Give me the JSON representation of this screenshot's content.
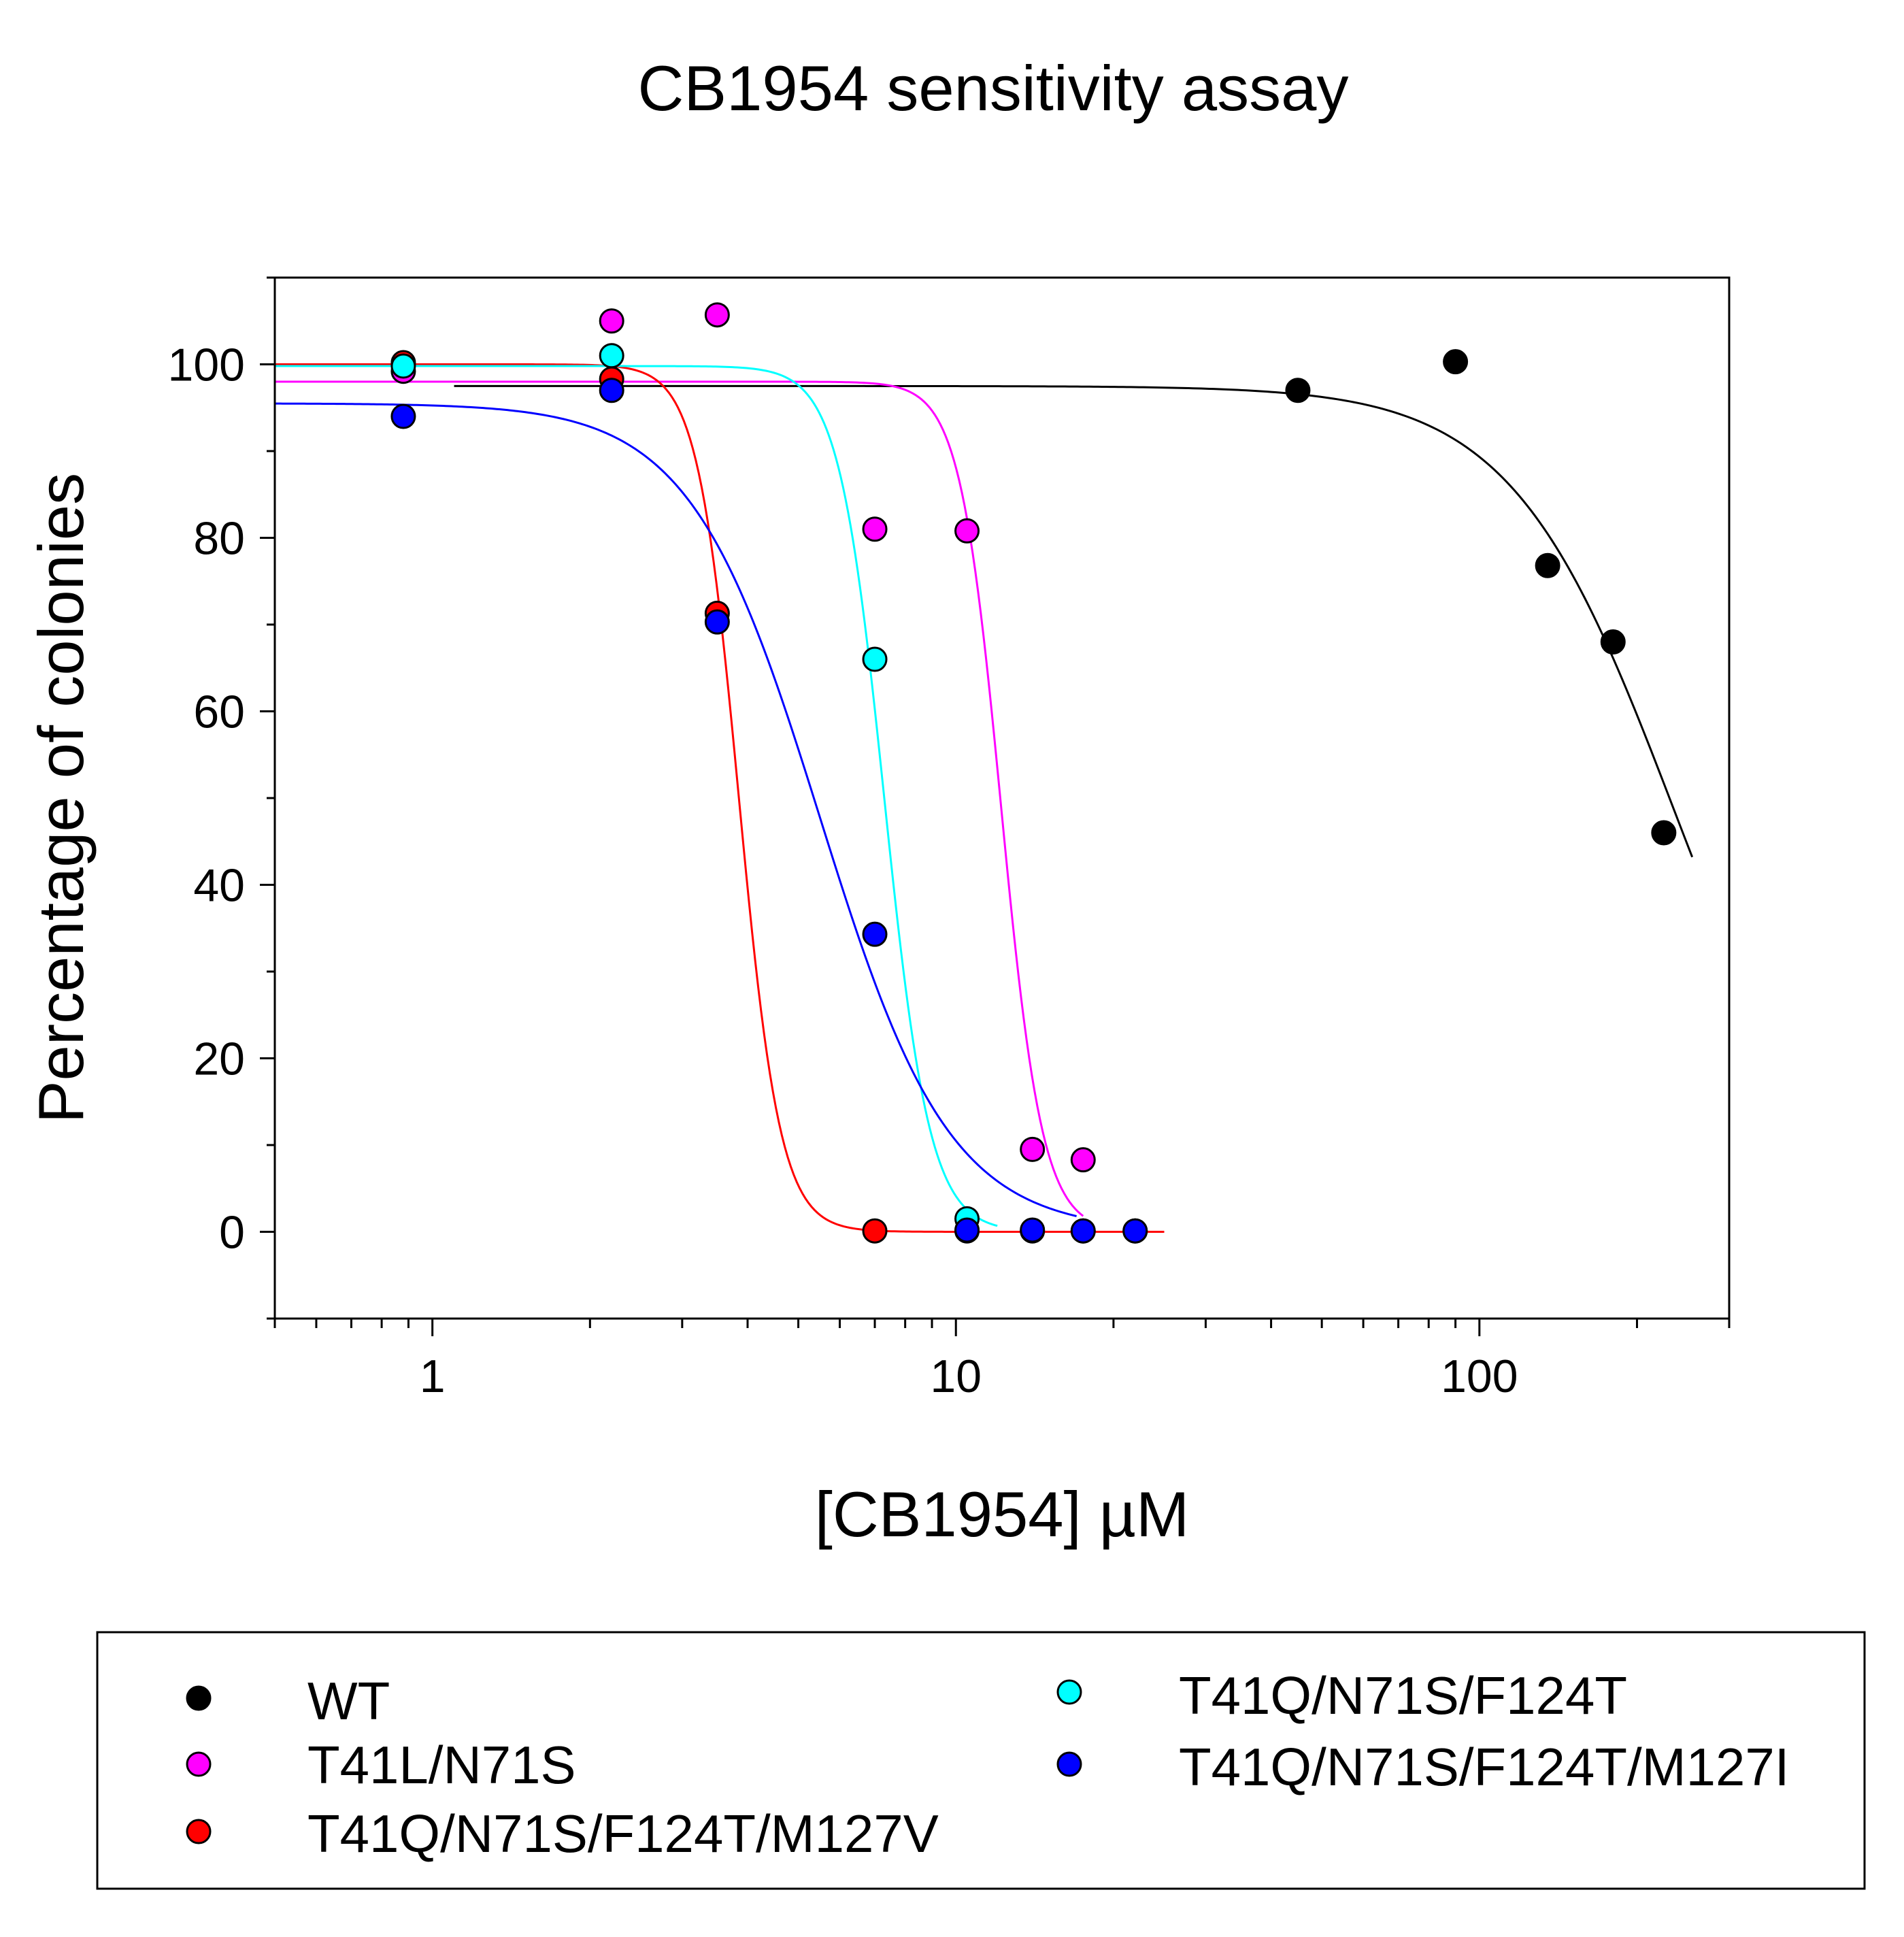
{
  "chart_data": {
    "type": "scatter",
    "title": "CB1954 sensitivity assay",
    "xlabel": "[CB1954] µM",
    "ylabel": "Percentage of colonies",
    "xscale": "log",
    "xlim": [
      0.5,
      300
    ],
    "ylim": [
      -10,
      110
    ],
    "xticks": [
      1,
      10,
      100
    ],
    "xtick_labels": [
      "1",
      "10",
      "100"
    ],
    "yticks": [
      0,
      20,
      40,
      60,
      80,
      100
    ],
    "ytick_labels": [
      "0",
      "20",
      "40",
      "60",
      "80",
      "100"
    ],
    "grid": false,
    "legend_position": "bottom",
    "series": [
      {
        "name": "WT",
        "color": "#000000",
        "points": [
          [
            45,
            97
          ],
          [
            90,
            100.3
          ],
          [
            135,
            76.8
          ],
          [
            180,
            68
          ],
          [
            225,
            46
          ]
        ],
        "fit": {
          "top": 97.5,
          "bottom": 0,
          "ec50": 235,
          "hill": 2.8,
          "x_from": 1.1,
          "x_to": 255
        }
      },
      {
        "name": "T41L/N71S",
        "color": "#ff00ff",
        "points": [
          [
            0.88,
            99.2
          ],
          [
            2.2,
            105
          ],
          [
            3.5,
            105.7
          ],
          [
            7.0,
            81
          ],
          [
            10.5,
            80.8
          ],
          [
            14,
            9.5
          ],
          [
            17.5,
            8.3
          ]
        ],
        "fit": {
          "top": 98,
          "bottom": 0,
          "ec50": 12.2,
          "hill": 11,
          "x_from": 0.5,
          "x_to": 17.5
        }
      },
      {
        "name": "T41Q/N71S/F124T/M127V",
        "color": "#ff0000",
        "points": [
          [
            0.88,
            100.2
          ],
          [
            2.2,
            98.3
          ],
          [
            3.5,
            71.3
          ],
          [
            7.0,
            0.1
          ],
          [
            10.5,
            0.1
          ],
          [
            14,
            0.1
          ],
          [
            17.5,
            0.1
          ],
          [
            22,
            0.1
          ]
        ],
        "fit": {
          "top": 100,
          "bottom": 0,
          "ec50": 3.85,
          "hill": 11,
          "x_from": 0.5,
          "x_to": 25
        }
      },
      {
        "name": "T41Q/N71S/F124T",
        "color": "#00ffff",
        "points": [
          [
            0.88,
            99.8
          ],
          [
            2.2,
            101
          ],
          [
            7.0,
            66
          ],
          [
            10.5,
            1.5
          ]
        ],
        "fit": {
          "top": 99.8,
          "bottom": 0,
          "ec50": 7.3,
          "hill": 10,
          "x_from": 0.5,
          "x_to": 12
        }
      },
      {
        "name": "T41Q/N71S/F124T/M127I",
        "color": "#0000ff",
        "points": [
          [
            0.88,
            94
          ],
          [
            2.2,
            97
          ],
          [
            3.5,
            70.3
          ],
          [
            7.0,
            34.3
          ],
          [
            10.5,
            0.2
          ],
          [
            14,
            0.2
          ],
          [
            17.5,
            0.1
          ],
          [
            22,
            0.1
          ]
        ],
        "fit": {
          "top": 95.5,
          "bottom": 0,
          "ec50": 5.5,
          "hill": 3.5,
          "x_from": 0.5,
          "x_to": 17
        }
      }
    ]
  }
}
